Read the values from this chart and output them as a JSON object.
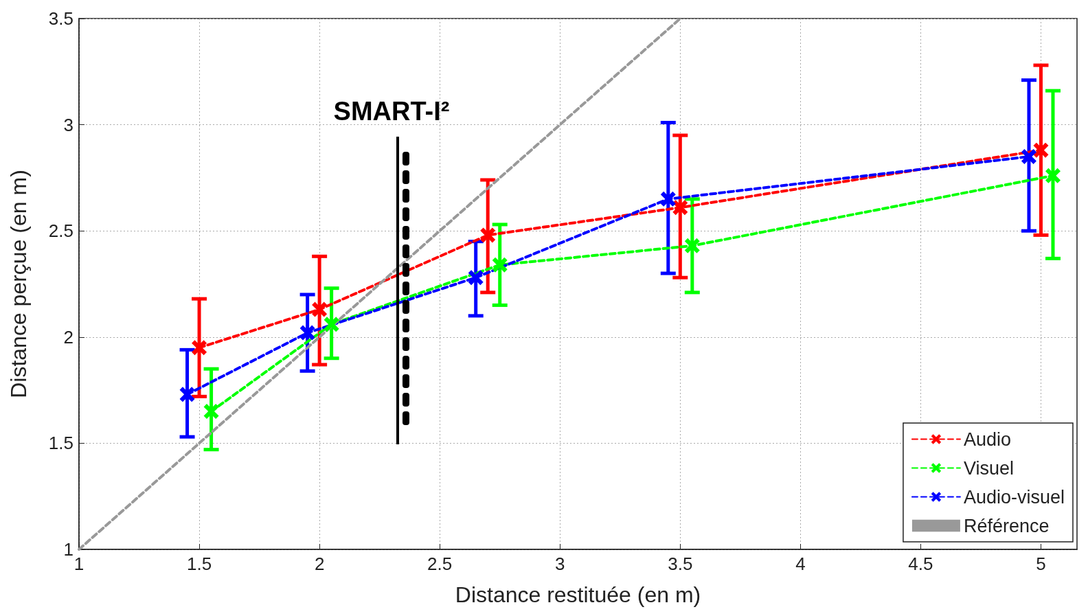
{
  "chart_data": {
    "type": "line",
    "xlabel": "Distance restituée (en m)",
    "ylabel": "Distance perçue (en m)",
    "xlim": [
      1,
      5.15
    ],
    "xticks": [
      1,
      1.5,
      2,
      2.5,
      3,
      3.5,
      4,
      4.5,
      5
    ],
    "ylim": [
      1,
      3.5
    ],
    "yticks": [
      1,
      1.5,
      2,
      2.5,
      3,
      3.5
    ],
    "grid": true,
    "legend": "bottom right",
    "marker": "cross",
    "line_style": "dashed",
    "annotations": [
      "SMART-I²"
    ],
    "series": [
      {
        "name": "Audio",
        "color": "#ff0000",
        "x": [
          1.5,
          2,
          2.7,
          3.5,
          5
        ],
        "values": [
          1.95,
          2.13,
          2.48,
          2.61,
          2.88
        ],
        "errors": [
          [
            1.72,
            2.18
          ],
          [
            1.87,
            2.38
          ],
          [
            2.21,
            2.74
          ],
          [
            2.28,
            2.95
          ],
          [
            2.48,
            3.28
          ]
        ]
      },
      {
        "name": "Visuel",
        "color": "#00ff00",
        "x": [
          1.55,
          2.05,
          2.75,
          3.55,
          5.05
        ],
        "values": [
          1.65,
          2.06,
          2.34,
          2.43,
          2.76
        ],
        "errors": [
          [
            1.47,
            1.85
          ],
          [
            1.9,
            2.23
          ],
          [
            2.15,
            2.53
          ],
          [
            2.21,
            2.65
          ],
          [
            2.37,
            3.16
          ]
        ]
      },
      {
        "name": "Audio-visuel",
        "color": "#0000ff",
        "x": [
          1.45,
          1.95,
          2.65,
          3.45,
          4.95
        ],
        "values": [
          1.73,
          2.02,
          2.28,
          2.65,
          2.85
        ],
        "errors": [
          [
            1.53,
            1.94
          ],
          [
            1.84,
            2.2
          ],
          [
            2.1,
            2.45
          ],
          [
            2.3,
            3.01
          ],
          [
            2.5,
            3.21
          ]
        ]
      },
      {
        "name": "Référence",
        "color": "#999999",
        "marker": "none",
        "x": [
          1,
          3.5
        ],
        "values": [
          1,
          3.5
        ]
      }
    ]
  }
}
